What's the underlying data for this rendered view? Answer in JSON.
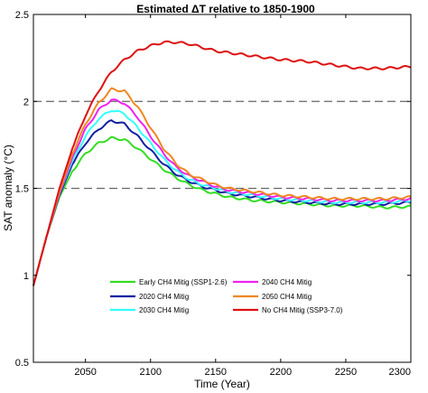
{
  "chart_data": {
    "type": "line",
    "title": "Estimated ΔT relative to 1850-1900",
    "xlabel": "Time (Year)",
    "ylabel": "SAT anomaly (°C)",
    "xlim": [
      2010,
      2300
    ],
    "ylim": [
      0.5,
      2.5
    ],
    "xticks": [
      2050,
      2100,
      2150,
      2200,
      2250,
      2300
    ],
    "yticks": [
      0.5,
      1,
      1.5,
      2,
      2.5
    ],
    "ytick_labels": [
      "0.5",
      "1",
      "1.5",
      "2",
      "2.5"
    ],
    "reference_lines": [
      1.5,
      2.0
    ],
    "grid": false,
    "legend_position": "lower-center",
    "series": [
      {
        "name": "Early CH4 Mitig (SSP1-2.6)",
        "color": "#33dd22",
        "x": [
          2010,
          2020,
          2030,
          2040,
          2050,
          2060,
          2070,
          2080,
          2090,
          2100,
          2110,
          2120,
          2130,
          2140,
          2150,
          2160,
          2170,
          2180,
          2190,
          2200,
          2220,
          2240,
          2260,
          2280,
          2300
        ],
        "y": [
          0.94,
          1.22,
          1.45,
          1.6,
          1.7,
          1.76,
          1.79,
          1.78,
          1.73,
          1.67,
          1.61,
          1.56,
          1.52,
          1.49,
          1.47,
          1.45,
          1.44,
          1.43,
          1.425,
          1.42,
          1.41,
          1.4,
          1.4,
          1.39,
          1.395
        ]
      },
      {
        "name": "2020 CH4 Mitig",
        "color": "#1020a0",
        "x": [
          2010,
          2020,
          2030,
          2040,
          2050,
          2060,
          2070,
          2080,
          2090,
          2100,
          2110,
          2120,
          2130,
          2140,
          2150,
          2160,
          2170,
          2180,
          2190,
          2200,
          2220,
          2240,
          2260,
          2280,
          2300
        ],
        "y": [
          0.94,
          1.22,
          1.46,
          1.64,
          1.76,
          1.84,
          1.89,
          1.87,
          1.8,
          1.72,
          1.64,
          1.58,
          1.54,
          1.51,
          1.49,
          1.47,
          1.46,
          1.45,
          1.44,
          1.43,
          1.42,
          1.41,
          1.41,
          1.41,
          1.42
        ]
      },
      {
        "name": "2030 CH4 Mitig",
        "color": "#33ffff",
        "x": [
          2010,
          2020,
          2030,
          2040,
          2050,
          2060,
          2070,
          2080,
          2090,
          2100,
          2110,
          2120,
          2130,
          2140,
          2150,
          2160,
          2170,
          2180,
          2190,
          2200,
          2220,
          2240,
          2260,
          2280,
          2300
        ],
        "y": [
          0.94,
          1.22,
          1.47,
          1.66,
          1.8,
          1.9,
          1.95,
          1.93,
          1.85,
          1.76,
          1.67,
          1.6,
          1.55,
          1.52,
          1.5,
          1.48,
          1.47,
          1.46,
          1.45,
          1.44,
          1.43,
          1.42,
          1.42,
          1.42,
          1.43
        ]
      },
      {
        "name": "2040 CH4 Mitig",
        "color": "#ee22ee",
        "x": [
          2010,
          2020,
          2030,
          2040,
          2050,
          2060,
          2070,
          2080,
          2090,
          2100,
          2110,
          2120,
          2130,
          2140,
          2150,
          2160,
          2170,
          2180,
          2190,
          2200,
          2220,
          2240,
          2260,
          2280,
          2300
        ],
        "y": [
          0.94,
          1.22,
          1.47,
          1.68,
          1.84,
          1.95,
          2.01,
          1.99,
          1.91,
          1.8,
          1.7,
          1.62,
          1.57,
          1.54,
          1.51,
          1.49,
          1.48,
          1.47,
          1.46,
          1.45,
          1.44,
          1.43,
          1.43,
          1.43,
          1.44
        ]
      },
      {
        "name": "2050 CH4 Mitig",
        "color": "#ee8822",
        "x": [
          2010,
          2020,
          2030,
          2040,
          2050,
          2060,
          2070,
          2080,
          2090,
          2100,
          2110,
          2120,
          2130,
          2140,
          2150,
          2160,
          2170,
          2180,
          2190,
          2200,
          2220,
          2240,
          2260,
          2280,
          2300
        ],
        "y": [
          0.94,
          1.22,
          1.48,
          1.7,
          1.87,
          1.99,
          2.07,
          2.06,
          1.97,
          1.85,
          1.73,
          1.64,
          1.58,
          1.55,
          1.52,
          1.5,
          1.49,
          1.48,
          1.47,
          1.46,
          1.45,
          1.44,
          1.44,
          1.44,
          1.45
        ]
      },
      {
        "name": "No CH4 Mitig (SSP3-7.0)",
        "color": "#dd1111",
        "x": [
          2010,
          2020,
          2030,
          2040,
          2050,
          2060,
          2070,
          2080,
          2090,
          2100,
          2110,
          2120,
          2130,
          2140,
          2150,
          2160,
          2170,
          2180,
          2190,
          2200,
          2220,
          2240,
          2260,
          2280,
          2300
        ],
        "y": [
          0.94,
          1.22,
          1.5,
          1.73,
          1.92,
          2.06,
          2.17,
          2.24,
          2.29,
          2.32,
          2.34,
          2.34,
          2.33,
          2.31,
          2.29,
          2.28,
          2.27,
          2.26,
          2.25,
          2.24,
          2.23,
          2.21,
          2.19,
          2.19,
          2.2
        ]
      }
    ]
  }
}
